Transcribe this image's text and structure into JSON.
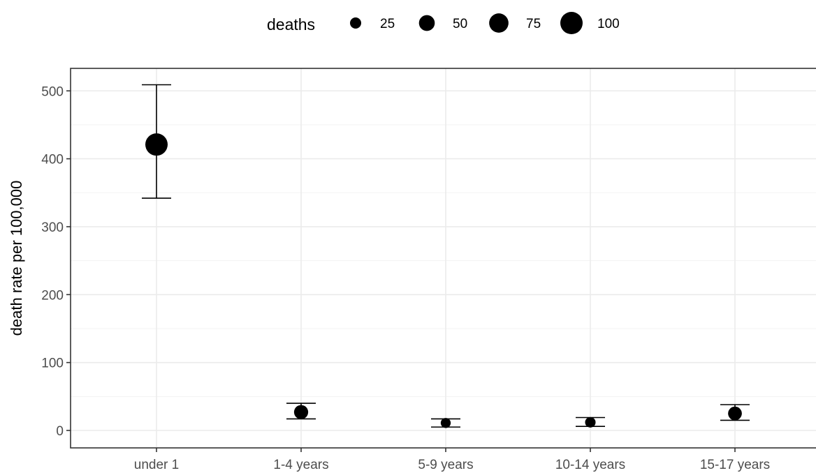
{
  "chart_data": {
    "type": "scatter",
    "title": "",
    "xlabel": "",
    "ylabel": "death rate per 100,000",
    "categories": [
      "under 1",
      "1-4 years",
      "5-9 years",
      "10-14 years",
      "15-17 years"
    ],
    "series": [
      {
        "values": [
          421,
          27,
          11,
          12,
          25
        ],
        "lower": [
          342,
          17,
          5,
          6,
          15
        ],
        "upper": [
          509,
          40,
          17,
          19,
          38
        ],
        "deaths": [
          100,
          40,
          20,
          22,
          38
        ]
      }
    ],
    "ylim": [
      -25,
      535
    ],
    "yticks": [
      0,
      100,
      200,
      300,
      400,
      500
    ],
    "grid": true,
    "legend": {
      "title": "deaths",
      "position": "top",
      "entries": [
        {
          "label": "25",
          "value": 25
        },
        {
          "label": "50",
          "value": 50
        },
        {
          "label": "75",
          "value": 75
        },
        {
          "label": "100",
          "value": 100
        }
      ]
    },
    "marker_color": "#000000"
  }
}
